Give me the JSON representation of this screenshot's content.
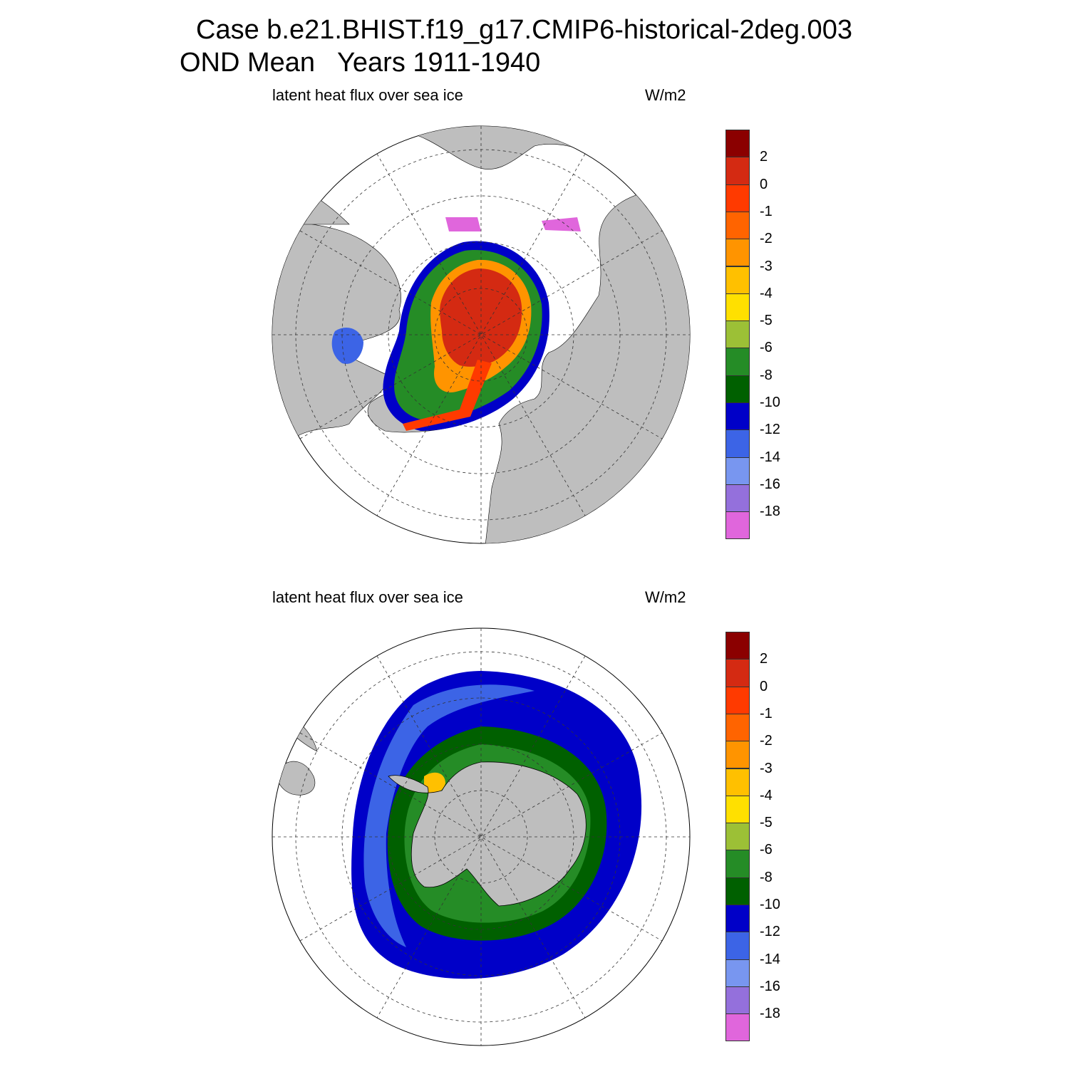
{
  "title": {
    "line1": "Case b.e21.BHIST.f19_g17.CMIP6-historical-2deg.003",
    "line2": "OND Mean   Years 1911-1940"
  },
  "colorscale": {
    "colors": [
      "#8b0000",
      "#d42a12",
      "#ff3a00",
      "#ff6400",
      "#ff9400",
      "#ffc000",
      "#ffe000",
      "#9cc036",
      "#258c26",
      "#006000",
      "#0000c8",
      "#3c64e6",
      "#7896f0",
      "#9470dc",
      "#e066dc"
    ],
    "labels": [
      "2",
      "0",
      "-1",
      "-2",
      "-3",
      "-4",
      "-5",
      "-6",
      "-8",
      "-10",
      "-12",
      "-14",
      "-16",
      "-18"
    ]
  },
  "panels": [
    {
      "id": "north",
      "left_label": "latent heat flux over sea ice",
      "right_label": "W/m2",
      "hemisphere": "Arctic"
    },
    {
      "id": "south",
      "left_label": "latent heat flux over sea ice",
      "right_label": "W/m2",
      "hemisphere": "Antarctic"
    }
  ]
}
